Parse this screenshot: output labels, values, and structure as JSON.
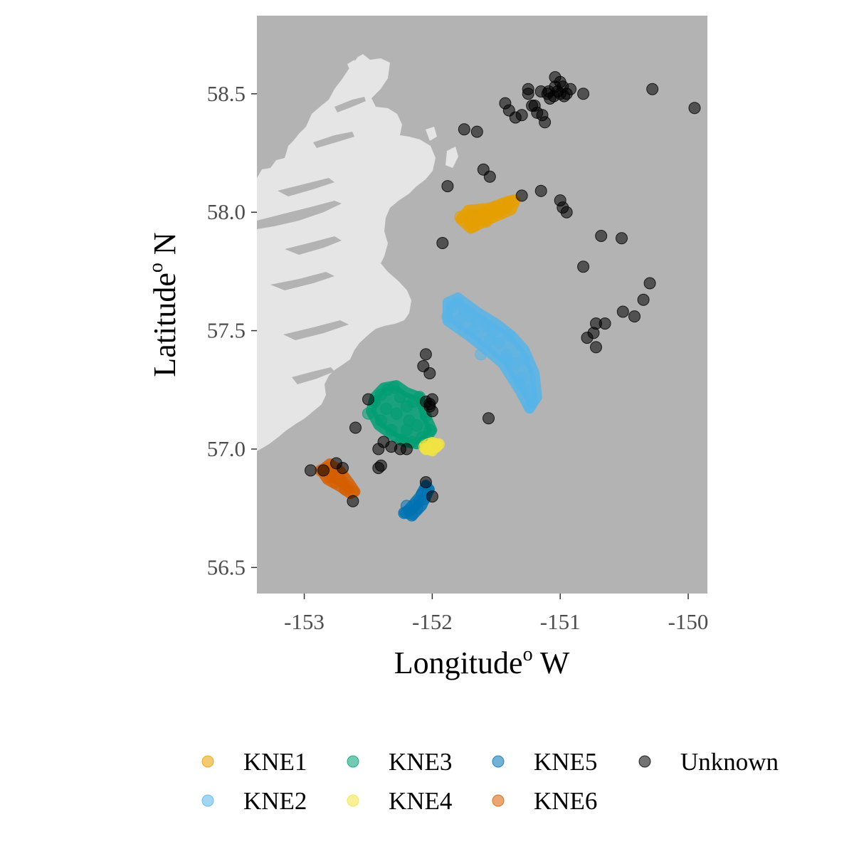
{
  "chart_data": {
    "type": "scatter",
    "xlabel": {
      "main": "Longitude",
      "sup": "o",
      "tail": " W"
    },
    "ylabel": {
      "main": "Latitude",
      "sup": "o",
      "tail": " N"
    },
    "xlim": [
      -153.37,
      -149.85
    ],
    "ylim": [
      56.39,
      58.83
    ],
    "xticks": [
      -153,
      -152,
      -151,
      -150
    ],
    "xtick_labels": [
      "-153",
      "-152",
      "-151",
      "-150"
    ],
    "yticks": [
      56.5,
      57.0,
      57.5,
      58.0,
      58.5
    ],
    "ytick_labels": [
      "56.5",
      "57.0",
      "57.5",
      "58.0",
      "58.5"
    ],
    "grid": false,
    "panel_color": "#b3b3b3",
    "land_color": "#e5e5e5",
    "legend_position": "bottom",
    "series": [
      {
        "name": "KNE1",
        "color": "#E69F00",
        "hull": [
          [
            -151.78,
            57.97
          ],
          [
            -151.72,
            58.01
          ],
          [
            -151.55,
            58.02
          ],
          [
            -151.4,
            58.05
          ],
          [
            -151.35,
            58.05
          ],
          [
            -151.38,
            58.01
          ],
          [
            -151.55,
            57.97
          ],
          [
            -151.7,
            57.93
          ]
        ],
        "x": [
          -151.78,
          -151.72,
          -151.65,
          -151.6,
          -151.55,
          -151.5,
          -151.45,
          -151.4,
          -151.36,
          -151.7,
          -151.62,
          -151.52,
          -151.48,
          -151.68,
          -151.58,
          -151.42,
          -151.55,
          -151.46
        ],
        "y": [
          57.98,
          57.99,
          57.98,
          58.0,
          58.01,
          58.02,
          58.03,
          58.04,
          58.05,
          57.95,
          57.97,
          57.99,
          58.0,
          57.94,
          57.96,
          58.02,
          57.98,
          58.01
        ]
      },
      {
        "name": "KNE2",
        "color": "#56B4E9",
        "hull": [
          [
            -151.88,
            57.62
          ],
          [
            -151.8,
            57.64
          ],
          [
            -151.65,
            57.58
          ],
          [
            -151.5,
            57.53
          ],
          [
            -151.38,
            57.48
          ],
          [
            -151.28,
            57.42
          ],
          [
            -151.2,
            57.32
          ],
          [
            -151.18,
            57.22
          ],
          [
            -151.24,
            57.17
          ],
          [
            -151.32,
            57.25
          ],
          [
            -151.45,
            57.36
          ],
          [
            -151.58,
            57.42
          ],
          [
            -151.72,
            57.48
          ],
          [
            -151.88,
            57.54
          ]
        ],
        "x": [
          -151.85,
          -151.8,
          -151.75,
          -151.7,
          -151.65,
          -151.58,
          -151.52,
          -151.48,
          -151.42,
          -151.36,
          -151.3,
          -151.26,
          -151.22,
          -151.24,
          -151.32,
          -151.42,
          -151.55,
          -151.68,
          -151.78,
          -151.88,
          -151.4,
          -151.28,
          -151.62
        ],
        "y": [
          57.6,
          57.62,
          57.59,
          57.56,
          57.54,
          57.52,
          57.5,
          57.45,
          57.4,
          57.36,
          57.3,
          57.25,
          57.2,
          57.18,
          57.28,
          57.38,
          57.46,
          57.5,
          57.55,
          57.56,
          57.48,
          57.38,
          57.4
        ]
      },
      {
        "name": "KNE3",
        "color": "#009E73",
        "hull": [
          [
            -152.45,
            57.22
          ],
          [
            -152.38,
            57.26
          ],
          [
            -152.28,
            57.27
          ],
          [
            -152.2,
            57.24
          ],
          [
            -152.1,
            57.22
          ],
          [
            -152.05,
            57.14
          ],
          [
            -152.0,
            57.08
          ],
          [
            -152.05,
            57.04
          ],
          [
            -152.12,
            57.02
          ],
          [
            -152.22,
            57.03
          ],
          [
            -152.32,
            57.06
          ],
          [
            -152.42,
            57.1
          ],
          [
            -152.48,
            57.16
          ]
        ],
        "x": [
          -152.45,
          -152.4,
          -152.35,
          -152.3,
          -152.25,
          -152.2,
          -152.15,
          -152.1,
          -152.05,
          -152.02,
          -152.08,
          -152.16,
          -152.24,
          -152.32,
          -152.4,
          -152.28,
          -152.18,
          -152.12,
          -152.5,
          -152.2,
          -152.36
        ],
        "y": [
          57.2,
          57.23,
          57.25,
          57.26,
          57.22,
          57.18,
          57.2,
          57.22,
          57.14,
          57.08,
          57.05,
          57.03,
          57.04,
          57.08,
          57.12,
          57.15,
          57.12,
          57.1,
          57.15,
          57.08,
          57.17
        ]
      },
      {
        "name": "KNE4",
        "color": "#F0E442",
        "hull": [
          [
            -152.06,
            57.02
          ],
          [
            -152.0,
            57.03
          ],
          [
            -151.95,
            57.02
          ],
          [
            -152.0,
            56.99
          ],
          [
            -152.05,
            57.0
          ]
        ],
        "x": [
          -152.06,
          -152.03,
          -152.0,
          -151.97,
          -152.02,
          -151.95,
          -152.05
        ],
        "y": [
          57.01,
          57.02,
          57.02,
          57.01,
          57.0,
          57.02,
          57.0
        ]
      },
      {
        "name": "KNE5",
        "color": "#0072B2",
        "hull": [
          [
            -152.22,
            56.73
          ],
          [
            -152.18,
            56.75
          ],
          [
            -152.1,
            56.8
          ],
          [
            -152.05,
            56.85
          ],
          [
            -152.02,
            56.83
          ],
          [
            -152.08,
            56.76
          ],
          [
            -152.15,
            56.72
          ]
        ],
        "x": [
          -152.22,
          -152.18,
          -152.14,
          -152.1,
          -152.08,
          -152.05,
          -152.03,
          -152.12,
          -152.16,
          -152.06,
          -152.2
        ],
        "y": [
          56.73,
          56.74,
          56.76,
          56.78,
          56.81,
          56.84,
          56.83,
          56.75,
          56.72,
          56.79,
          56.76
        ]
      },
      {
        "name": "KNE6",
        "color": "#D55E00",
        "hull": [
          [
            -152.87,
            56.91
          ],
          [
            -152.8,
            56.94
          ],
          [
            -152.72,
            56.91
          ],
          [
            -152.65,
            56.86
          ],
          [
            -152.6,
            56.82
          ],
          [
            -152.64,
            56.81
          ],
          [
            -152.72,
            56.84
          ],
          [
            -152.82,
            56.87
          ]
        ],
        "x": [
          -152.87,
          -152.82,
          -152.78,
          -152.74,
          -152.7,
          -152.66,
          -152.62,
          -152.8,
          -152.76,
          -152.68,
          -152.72
        ],
        "y": [
          56.91,
          56.92,
          56.9,
          56.88,
          56.86,
          56.84,
          56.82,
          56.88,
          56.86,
          56.83,
          56.9
        ]
      },
      {
        "name": "Unknown",
        "color": "#000000",
        "x": [
          -151.25,
          -151.15,
          -151.1,
          -151.05,
          -151.0,
          -150.97,
          -150.95,
          -151.02,
          -151.08,
          -150.98,
          -150.92,
          -151.0,
          -151.04,
          -150.82,
          -150.28,
          -149.95,
          -151.3,
          -151.35,
          -151.4,
          -151.43,
          -151.2,
          -151.18,
          -151.12,
          -151.04,
          -151.09,
          -151.25,
          -151.14,
          -151.22,
          -151.6,
          -151.55,
          -151.65,
          -151.75,
          -151.88,
          -151.3,
          -151.15,
          -151.0,
          -150.98,
          -150.95,
          -150.68,
          -150.52,
          -150.3,
          -150.35,
          -150.42,
          -150.51,
          -150.65,
          -150.72,
          -150.74,
          -150.79,
          -150.72,
          -150.82,
          -151.92,
          -152.05,
          -152.07,
          -152.02,
          -152.0,
          -152.02,
          -152.05,
          -152.0,
          -152.2,
          -152.25,
          -152.32,
          -152.38,
          -152.42,
          -152.4,
          -152.42,
          -152.6,
          -152.7,
          -152.75,
          -152.85,
          -152.95,
          -152.62,
          -152.0,
          -152.05,
          -151.56,
          -152.5,
          -152.02
        ],
        "y": [
          58.52,
          58.51,
          58.5,
          58.49,
          58.5,
          58.49,
          58.5,
          58.51,
          58.48,
          58.53,
          58.52,
          58.55,
          58.53,
          58.5,
          58.52,
          58.44,
          58.41,
          58.4,
          58.43,
          58.46,
          58.45,
          58.42,
          58.38,
          58.57,
          58.51,
          58.5,
          58.41,
          58.45,
          58.18,
          58.15,
          58.34,
          58.35,
          58.11,
          58.07,
          58.09,
          58.05,
          58.02,
          58.0,
          57.9,
          57.89,
          57.7,
          57.63,
          57.56,
          57.58,
          57.53,
          57.53,
          57.49,
          57.47,
          57.43,
          57.77,
          57.87,
          57.4,
          57.35,
          57.32,
          57.21,
          57.19,
          57.2,
          57.16,
          57.0,
          57.0,
          57.01,
          57.03,
          57.0,
          56.93,
          56.92,
          57.09,
          56.92,
          56.94,
          56.91,
          56.91,
          56.78,
          56.8,
          56.86,
          57.13,
          57.21,
          57.18
        ]
      }
    ],
    "legend": [
      "KNE1",
      "KNE2",
      "KNE3",
      "KNE4",
      "KNE5",
      "KNE6",
      "Unknown"
    ]
  }
}
